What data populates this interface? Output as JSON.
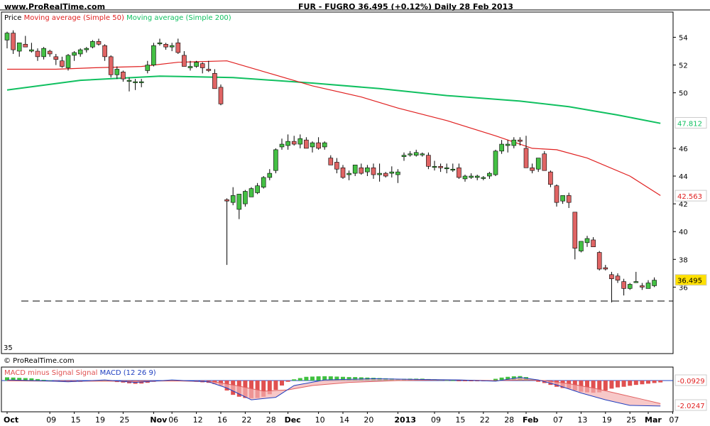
{
  "header": {
    "site": "www.ProRealTime.com",
    "title": "FUR - FUGRO    36.495 (+0.12%)    Daily  28 Feb 2013"
  },
  "legend": {
    "price": "Price",
    "ma50": "Moving average (Simple 50)",
    "ma200": "Moving average (Simple 200)"
  },
  "footer_credit": "© ProRealTime.com",
  "macd_legend": {
    "hist": "MACD minus Signal",
    "signal": "Signal",
    "macd": "MACD",
    "params": "(12 26 9)"
  },
  "level_35": "35",
  "colors": {
    "up": "#44c044",
    "down": "#e06464",
    "ma50": "#e02020",
    "ma200": "#10c060",
    "macd_line": "#2040c0",
    "signal_line": "#e06060",
    "hist_pos": "#40c040",
    "hist_neg": "#e05050",
    "last_price_bg": "#ffe000"
  },
  "chart_data": [
    {
      "type": "candlestick",
      "name": "price",
      "title": "FUR - FUGRO 36.495 (+0.12%) Daily 28 Feb 2013",
      "y_ticks": [
        36,
        38,
        40,
        42,
        44,
        46,
        50,
        52,
        54
      ],
      "x_labels": [
        {
          "i": 0,
          "label": "Oct"
        },
        {
          "i": 7,
          "label": "09"
        },
        {
          "i": 11,
          "label": "15"
        },
        {
          "i": 15,
          "label": "19"
        },
        {
          "i": 19,
          "label": "25"
        },
        {
          "i": 24,
          "label": "Nov"
        },
        {
          "i": 27,
          "label": "06"
        },
        {
          "i": 31,
          "label": "12"
        },
        {
          "i": 35,
          "label": "16"
        },
        {
          "i": 39,
          "label": "22"
        },
        {
          "i": 43,
          "label": "28"
        },
        {
          "i": 46,
          "label": "Dec"
        },
        {
          "i": 51,
          "label": "10"
        },
        {
          "i": 55,
          "label": "14"
        },
        {
          "i": 59,
          "label": "20"
        },
        {
          "i": 64,
          "label": "2013"
        },
        {
          "i": 70,
          "label": "09"
        },
        {
          "i": 74,
          "label": "15"
        },
        {
          "i": 78,
          "label": "22"
        },
        {
          "i": 82,
          "label": "28"
        },
        {
          "i": 85,
          "label": "Feb"
        },
        {
          "i": 90,
          "label": "07"
        },
        {
          "i": 94,
          "label": "13"
        },
        {
          "i": 98,
          "label": "19"
        },
        {
          "i": 102,
          "label": "25"
        },
        {
          "i": 105,
          "label": "Mar"
        },
        {
          "i": 109,
          "label": "07"
        }
      ],
      "candles": [
        [
          53.8,
          54.4,
          53.2,
          54.3
        ],
        [
          54.3,
          54.5,
          52.8,
          53.1
        ],
        [
          53.0,
          53.6,
          52.6,
          53.6
        ],
        [
          53.5,
          54.1,
          53.3,
          53.3
        ],
        [
          53.0,
          53.6,
          52.9,
          53.1
        ],
        [
          53.0,
          53.2,
          52.3,
          52.6
        ],
        [
          52.6,
          53.3,
          52.4,
          53.2
        ],
        [
          53.0,
          53.1,
          52.6,
          52.8
        ],
        [
          52.6,
          52.8,
          52.0,
          52.4
        ],
        [
          52.3,
          52.6,
          51.8,
          51.9
        ],
        [
          51.8,
          52.8,
          51.6,
          52.7
        ],
        [
          52.7,
          53.0,
          52.3,
          52.9
        ],
        [
          52.8,
          53.2,
          52.6,
          53.1
        ],
        [
          53.1,
          53.3,
          52.9,
          53.2
        ],
        [
          53.3,
          53.8,
          53.2,
          53.7
        ],
        [
          53.7,
          53.9,
          53.4,
          53.5
        ],
        [
          53.4,
          53.5,
          52.3,
          52.6
        ],
        [
          52.6,
          52.7,
          51.1,
          51.3
        ],
        [
          51.3,
          51.9,
          51.0,
          51.7
        ],
        [
          51.5,
          51.6,
          50.8,
          51.0
        ],
        [
          50.9,
          51.1,
          50.1,
          50.9
        ],
        [
          50.8,
          51.0,
          50.2,
          50.8
        ],
        [
          50.8,
          51.0,
          50.4,
          50.8
        ],
        [
          51.6,
          52.3,
          51.4,
          52.0
        ],
        [
          52.0,
          53.6,
          51.9,
          53.4
        ],
        [
          53.6,
          53.9,
          53.4,
          53.6
        ],
        [
          53.5,
          53.6,
          53.1,
          53.3
        ],
        [
          53.3,
          53.6,
          53.0,
          53.4
        ],
        [
          53.6,
          53.9,
          52.8,
          52.9
        ],
        [
          52.7,
          53.0,
          51.9,
          51.9
        ],
        [
          51.8,
          52.3,
          51.6,
          51.9
        ],
        [
          51.9,
          52.3,
          51.8,
          52.2
        ],
        [
          52.1,
          52.2,
          51.4,
          51.8
        ],
        [
          51.7,
          52.3,
          51.5,
          51.6
        ],
        [
          51.4,
          51.7,
          50.3,
          50.3
        ],
        [
          50.4,
          50.6,
          49.1,
          49.2
        ],
        [
          42.3,
          42.4,
          37.6,
          42.2
        ],
        [
          42.1,
          43.2,
          41.9,
          42.6
        ],
        [
          41.6,
          42.7,
          40.9,
          42.7
        ],
        [
          42.0,
          43.0,
          41.8,
          42.9
        ],
        [
          42.5,
          43.2,
          42.5,
          43.1
        ],
        [
          42.8,
          43.5,
          42.7,
          43.3
        ],
        [
          43.2,
          44.0,
          43.1,
          43.9
        ],
        [
          43.9,
          44.5,
          43.7,
          44.2
        ],
        [
          44.4,
          46.0,
          44.2,
          45.9
        ],
        [
          46.1,
          46.7,
          45.9,
          46.3
        ],
        [
          46.2,
          47.0,
          45.9,
          46.5
        ],
        [
          46.5,
          46.9,
          46.2,
          46.3
        ],
        [
          46.3,
          47.0,
          46.0,
          46.7
        ],
        [
          46.6,
          46.8,
          46.0,
          46.0
        ],
        [
          46.1,
          46.5,
          45.7,
          46.4
        ],
        [
          46.4,
          46.8,
          45.9,
          46.0
        ],
        [
          46.1,
          46.5,
          45.9,
          46.4
        ],
        [
          45.3,
          45.5,
          44.8,
          44.8
        ],
        [
          45.0,
          45.3,
          44.2,
          44.5
        ],
        [
          44.6,
          44.8,
          43.8,
          43.9
        ],
        [
          44.1,
          44.4,
          43.7,
          44.2
        ],
        [
          44.2,
          44.8,
          44.0,
          44.8
        ],
        [
          44.6,
          44.9,
          44.1,
          44.2
        ],
        [
          44.3,
          44.8,
          44.0,
          44.6
        ],
        [
          44.6,
          44.9,
          43.8,
          44.1
        ],
        [
          44.1,
          44.9,
          43.6,
          44.2
        ],
        [
          44.2,
          44.3,
          43.9,
          44.0
        ],
        [
          44.2,
          44.7,
          43.9,
          44.3
        ],
        [
          44.1,
          44.5,
          43.5,
          44.3
        ],
        [
          45.4,
          45.7,
          45.1,
          45.5
        ],
        [
          45.6,
          45.8,
          45.4,
          45.6
        ],
        [
          45.5,
          45.9,
          45.4,
          45.7
        ],
        [
          45.6,
          45.7,
          45.4,
          45.6
        ],
        [
          45.5,
          45.7,
          44.5,
          44.7
        ],
        [
          44.7,
          45.1,
          44.4,
          44.7
        ],
        [
          44.7,
          44.9,
          44.3,
          44.6
        ],
        [
          44.6,
          44.9,
          44.2,
          44.6
        ],
        [
          44.5,
          44.9,
          44.3,
          44.5
        ],
        [
          44.6,
          44.9,
          43.8,
          43.9
        ],
        [
          43.8,
          44.1,
          43.6,
          44.0
        ],
        [
          43.9,
          44.2,
          43.8,
          44.0
        ],
        [
          43.9,
          44.1,
          43.7,
          44.0
        ],
        [
          43.9,
          44.0,
          43.7,
          43.9
        ],
        [
          44.0,
          44.3,
          43.8,
          44.2
        ],
        [
          44.1,
          45.9,
          44.0,
          45.8
        ],
        [
          45.8,
          46.6,
          45.6,
          46.3
        ],
        [
          46.2,
          46.6,
          45.7,
          46.3
        ],
        [
          46.2,
          46.8,
          46.0,
          46.6
        ],
        [
          46.6,
          46.8,
          46.2,
          46.5
        ],
        [
          46.0,
          46.9,
          44.6,
          44.6
        ],
        [
          44.6,
          44.9,
          44.2,
          44.4
        ],
        [
          44.5,
          45.3,
          44.3,
          45.3
        ],
        [
          45.6,
          45.8,
          44.4,
          44.4
        ],
        [
          44.3,
          44.4,
          43.2,
          43.4
        ],
        [
          43.3,
          43.4,
          41.8,
          42.1
        ],
        [
          42.2,
          42.6,
          42.0,
          42.6
        ],
        [
          42.6,
          42.8,
          41.7,
          42.1
        ],
        [
          41.4,
          41.4,
          38.0,
          38.8
        ],
        [
          38.6,
          39.3,
          38.5,
          39.3
        ],
        [
          39.2,
          39.7,
          38.9,
          39.5
        ],
        [
          39.4,
          39.6,
          38.9,
          38.9
        ],
        [
          38.5,
          38.6,
          37.2,
          37.3
        ],
        [
          37.4,
          37.6,
          37.2,
          37.3
        ],
        [
          36.9,
          37.1,
          34.9,
          36.6
        ],
        [
          36.8,
          37.0,
          36.3,
          36.5
        ],
        [
          36.4,
          36.6,
          35.4,
          35.9
        ],
        [
          35.9,
          36.3,
          35.8,
          36.2
        ],
        [
          36.4,
          37.1,
          36.3,
          36.4
        ],
        [
          36.1,
          36.3,
          35.8,
          36.0
        ],
        [
          35.9,
          36.5,
          35.9,
          36.3
        ],
        [
          36.1,
          36.7,
          36.0,
          36.5
        ]
      ],
      "ma50": [
        [
          0,
          51.7
        ],
        [
          8,
          51.7
        ],
        [
          14,
          51.8
        ],
        [
          22,
          51.9
        ],
        [
          28,
          52.2
        ],
        [
          36,
          52.3
        ],
        [
          43,
          51.4
        ],
        [
          50,
          50.5
        ],
        [
          58,
          49.7
        ],
        [
          64,
          48.9
        ],
        [
          72,
          48.0
        ],
        [
          80,
          46.9
        ],
        [
          86,
          46.0
        ],
        [
          90,
          45.9
        ],
        [
          95,
          45.3
        ],
        [
          102,
          44.0
        ],
        [
          107,
          42.6
        ]
      ],
      "ma200": [
        [
          0,
          50.2
        ],
        [
          12,
          50.9
        ],
        [
          25,
          51.2
        ],
        [
          37,
          51.1
        ],
        [
          50,
          50.7
        ],
        [
          61,
          50.3
        ],
        [
          72,
          49.8
        ],
        [
          84,
          49.4
        ],
        [
          92,
          49.0
        ],
        [
          100,
          48.4
        ],
        [
          107,
          47.8
        ]
      ],
      "last_labels": {
        "ma200": "47.812",
        "ma50": "42.563",
        "price": "36.495"
      },
      "ref_level": 35
    },
    {
      "type": "bar",
      "name": "MACD (12 26 9)",
      "y_ticks": [
        "-0.0929",
        "-2.0247"
      ],
      "histogram": [
        0.26,
        0.24,
        0.22,
        0.2,
        0.18,
        0.12,
        0.06,
        0.02,
        -0.02,
        -0.06,
        -0.08,
        -0.1,
        -0.1,
        -0.06,
        -0.02,
        0.02,
        0.02,
        -0.06,
        -0.12,
        -0.16,
        -0.22,
        -0.26,
        -0.24,
        -0.18,
        -0.1,
        -0.02,
        0.02,
        0.03,
        0.02,
        -0.02,
        -0.06,
        -0.1,
        -0.14,
        -0.18,
        -0.28,
        -0.4,
        -0.8,
        -1.15,
        -1.3,
        -1.4,
        -1.42,
        -1.4,
        -1.3,
        -1.1,
        -0.75,
        -0.4,
        -0.1,
        0.1,
        0.2,
        0.3,
        0.32,
        0.34,
        0.35,
        0.34,
        0.32,
        0.3,
        0.28,
        0.28,
        0.26,
        0.24,
        0.22,
        0.2,
        0.18,
        0.16,
        0.14,
        0.14,
        0.15,
        0.15,
        0.15,
        0.12,
        0.1,
        0.06,
        0.04,
        0.02,
        -0.02,
        -0.04,
        -0.04,
        -0.05,
        -0.04,
        0.02,
        0.14,
        0.24,
        0.3,
        0.34,
        0.36,
        0.28,
        0.1,
        -0.1,
        -0.2,
        -0.35,
        -0.5,
        -0.6,
        -0.65,
        -0.8,
        -0.9,
        -0.95,
        -0.98,
        -0.95,
        -0.8,
        -0.65,
        -0.55,
        -0.5,
        -0.42,
        -0.35,
        -0.3,
        -0.25,
        -0.2,
        -0.15
      ],
      "macd": [
        [
          0,
          0.05
        ],
        [
          6,
          -0.02
        ],
        [
          10,
          -0.1
        ],
        [
          16,
          0.05
        ],
        [
          21,
          -0.15
        ],
        [
          27,
          0.05
        ],
        [
          33,
          -0.1
        ],
        [
          36,
          -0.6
        ],
        [
          40,
          -1.55
        ],
        [
          44,
          -1.35
        ],
        [
          47,
          -0.4
        ],
        [
          52,
          0.05
        ],
        [
          60,
          0.15
        ],
        [
          66,
          0.1
        ],
        [
          74,
          0.05
        ],
        [
          80,
          -0.05
        ],
        [
          84,
          0.25
        ],
        [
          87,
          0.05
        ],
        [
          90,
          -0.35
        ],
        [
          94,
          -1.0
        ],
        [
          98,
          -1.55
        ],
        [
          102,
          -2.0
        ],
        [
          107,
          -2.05
        ]
      ],
      "signal": [
        [
          0,
          -0.02
        ],
        [
          6,
          -0.04
        ],
        [
          12,
          -0.05
        ],
        [
          20,
          -0.05
        ],
        [
          28,
          -0.03
        ],
        [
          34,
          -0.1
        ],
        [
          38,
          -0.45
        ],
        [
          42,
          -0.85
        ],
        [
          46,
          -0.75
        ],
        [
          50,
          -0.4
        ],
        [
          56,
          -0.15
        ],
        [
          64,
          0.0
        ],
        [
          72,
          0.05
        ],
        [
          80,
          0.0
        ],
        [
          85,
          0.05
        ],
        [
          88,
          0.0
        ],
        [
          92,
          -0.25
        ],
        [
          96,
          -0.6
        ],
        [
          100,
          -1.05
        ],
        [
          104,
          -1.5
        ],
        [
          107,
          -1.85
        ]
      ],
      "zero_label": "-0.0929",
      "min_label": "-2.0247"
    }
  ]
}
